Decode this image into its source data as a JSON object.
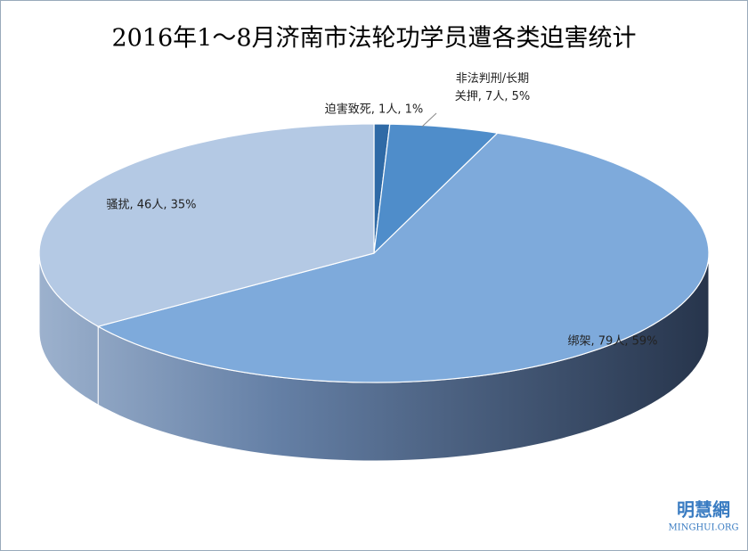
{
  "chart_data": {
    "type": "pie3d",
    "title": "2016年1～8月济南市法轮功学员遭各类迫害统计",
    "categories": [
      "迫害致死",
      "非法判刑/长期关押",
      "绑架",
      "骚扰"
    ],
    "values": [
      1,
      7,
      79,
      46
    ],
    "value_labels": [
      "迫害致死, 1人, 1%",
      "非法判刑/长期\n关押, 7人, 5%",
      "绑架, 79人, 59%",
      "骚扰, 46人, 35%"
    ],
    "colors": [
      "#2f6aa6",
      "#4f8dca",
      "#7eaadb",
      "#b4c9e4"
    ],
    "watermark": "明慧網",
    "watermark_sub": "MINGHUI.ORG"
  }
}
